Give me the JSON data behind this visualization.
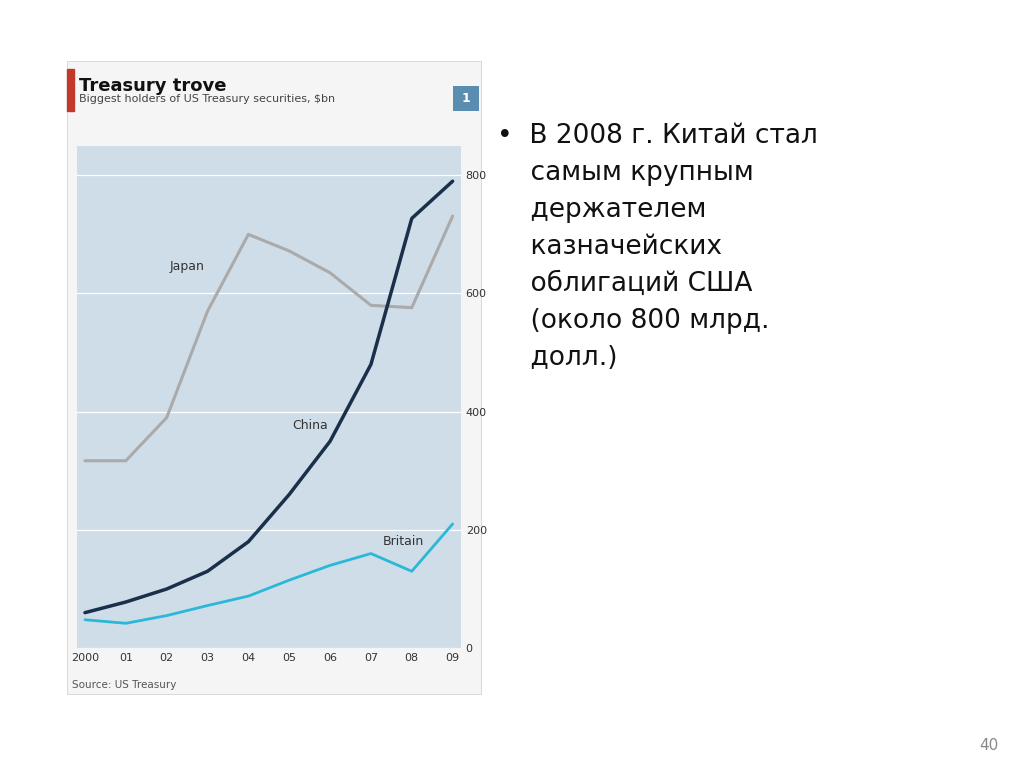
{
  "title": "Treasury trove",
  "subtitle": "Biggest holders of US Treasury securities, $bn",
  "source": "Source: US Treasury",
  "x_labels": [
    "2000",
    "01",
    "02",
    "03",
    "04",
    "05",
    "06",
    "07",
    "08",
    "09"
  ],
  "japan": [
    317,
    317,
    390,
    570,
    700,
    672,
    635,
    580,
    576,
    731
  ],
  "china": [
    60,
    78,
    100,
    130,
    180,
    260,
    350,
    480,
    727,
    790
  ],
  "britain": [
    48,
    42,
    55,
    72,
    88,
    115,
    140,
    160,
    130,
    210
  ],
  "japan_color": "#aaaaaa",
  "china_color": "#1a2f4a",
  "britain_color": "#2ab8d8",
  "bg_color": "#cfdde8",
  "title_bar_color": "#c0392b",
  "ylim": [
    0,
    850
  ],
  "yticks": [
    0,
    200,
    400,
    600,
    800
  ],
  "badge_color": "#5b8db0",
  "badge_text": "1",
  "page_number": "40"
}
